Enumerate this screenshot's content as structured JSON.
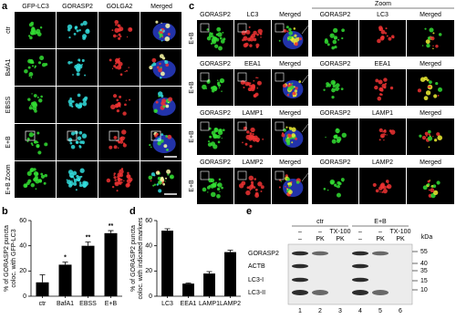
{
  "panel_labels": [
    "a",
    "b",
    "c",
    "d",
    "e"
  ],
  "panel_a": {
    "column_headers": [
      "GFP-LC3",
      "GORASP2",
      "GOLGA2",
      "Merged"
    ],
    "row_labels": [
      "ctr",
      "BafA1",
      "EBSS",
      "E+B",
      "E+B Zoom"
    ]
  },
  "panel_c": {
    "zoom_header": "Zoom",
    "rows": [
      {
        "label": "E+B",
        "headers": [
          "GORASP2",
          "LC3",
          "Merged",
          "GORASP2",
          "LC3",
          "Merged"
        ]
      },
      {
        "label": "E+B",
        "headers": [
          "GORASP2",
          "EEA1",
          "Merged",
          "GORASP2",
          "EEA1",
          "Merged"
        ]
      },
      {
        "label": "E+B",
        "headers": [
          "GORASP2",
          "LAMP1",
          "Merged",
          "GORASP2",
          "LAMP1",
          "Merged"
        ]
      },
      {
        "label": "E+B",
        "headers": [
          "GORASP2",
          "LAMP2",
          "Merged",
          "GORASP2",
          "LAMP2",
          "Merged"
        ]
      }
    ]
  },
  "panel_e": {
    "groups": [
      "ctr",
      "E+B"
    ],
    "treatment_row1": [
      "–",
      "–",
      "TX-100",
      "–",
      "–",
      "TX-100"
    ],
    "treatment_row2": [
      "–",
      "PK",
      "PK",
      "–",
      "PK",
      "PK"
    ],
    "bands": [
      "GORASP2",
      "ACTB",
      "LC3-I",
      "LC3-II"
    ],
    "mw_unit": "kDa",
    "mw_markers": [
      "55",
      "40",
      "35",
      "15",
      "10"
    ],
    "lanes": [
      "1",
      "2",
      "3",
      "4",
      "5",
      "6"
    ]
  },
  "chart_data": [
    {
      "type": "bar",
      "ylabel_lines": [
        "% of GORASP2 puncta",
        "coloc. with GFP-LC3"
      ],
      "categories": [
        "ctr",
        "BafA1",
        "EBSS",
        "E+B"
      ],
      "values": [
        11,
        25,
        40,
        50
      ],
      "errors": [
        6,
        2,
        3,
        2
      ],
      "annotations": [
        null,
        "*",
        "**",
        "**"
      ],
      "color": "#000000",
      "ylim": [
        0,
        60
      ],
      "yticks": [
        0,
        20,
        40,
        60
      ]
    },
    {
      "type": "bar",
      "ylabel_lines": [
        "% of GORASP2 puncta",
        "coloc. with indicated markers"
      ],
      "categories": [
        "LC3",
        "EEA1",
        "LAMP1",
        "LAMP2"
      ],
      "values": [
        52,
        10,
        18,
        35
      ],
      "errors": [
        1.5,
        0.5,
        1.5,
        1.5
      ],
      "annotations": [
        null,
        null,
        null,
        null
      ],
      "color": "#000000",
      "ylim": [
        0,
        60
      ],
      "yticks": [
        0,
        20,
        40,
        60
      ]
    }
  ]
}
